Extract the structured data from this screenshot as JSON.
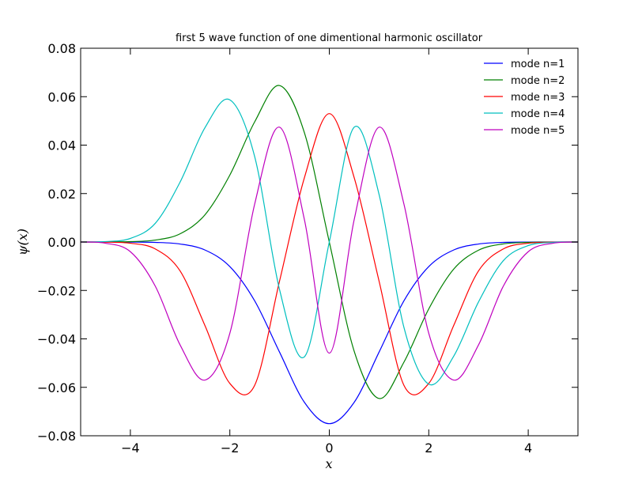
{
  "chart_data": {
    "type": "line",
    "title": "first 5 wave function of one dimentional harmonic oscillator",
    "xlabel": "x",
    "ylabel": "ψ(x)",
    "xlim": [
      -5,
      5
    ],
    "ylim": [
      -0.08,
      0.08
    ],
    "xticks": [
      -4,
      -2,
      0,
      2,
      4
    ],
    "xtick_labels": [
      "−4",
      "−2",
      "0",
      "2",
      "4"
    ],
    "yticks": [
      -0.08,
      -0.06,
      -0.04,
      -0.02,
      0.0,
      0.02,
      0.04,
      0.06,
      0.08
    ],
    "ytick_labels": [
      "−0.08",
      "−0.06",
      "−0.04",
      "−0.02",
      "0.00",
      "0.02",
      "0.04",
      "0.06",
      "0.08"
    ],
    "grid": false,
    "legend_position": "top-right",
    "series": [
      {
        "name": "mode n=1",
        "color": "#0000ff",
        "x": [
          -5,
          -4.5,
          -4,
          -3.5,
          -3,
          -2.5,
          -2,
          -1.5,
          -1,
          -0.5,
          0,
          0.5,
          1,
          1.5,
          2,
          2.5,
          3,
          3.5,
          4,
          4.5,
          5
        ],
        "y": [
          0,
          -0.0,
          -3e-05,
          -0.00016,
          -0.00083,
          -0.0033,
          -0.01015,
          -0.02431,
          -0.04549,
          -0.06621,
          -0.075,
          -0.06621,
          -0.04549,
          -0.02431,
          -0.01015,
          -0.0033,
          -0.00083,
          -0.00016,
          -3e-05,
          -0.0,
          0
        ]
      },
      {
        "name": "mode n=2",
        "color": "#008000",
        "x": [
          -5,
          -4.5,
          -4,
          -3.5,
          -3,
          -2.5,
          -2,
          -1.5,
          -1,
          -0.5,
          0,
          0.5,
          1,
          1.5,
          2,
          2.5,
          3,
          3.5,
          4,
          4.5,
          5
        ],
        "y": [
          0,
          2e-05,
          0.00016,
          0.00079,
          0.00339,
          0.01124,
          0.02763,
          0.04963,
          0.0646,
          0.04507,
          0.0,
          -0.04507,
          -0.0646,
          -0.04963,
          -0.02763,
          -0.01124,
          -0.00339,
          -0.00079,
          -0.00016,
          -2e-05,
          0
        ]
      },
      {
        "name": "mode n=3",
        "color": "#ff0000",
        "x": [
          -5,
          -4.5,
          -4,
          -3.5,
          -3,
          -2.5,
          -2,
          -1.5,
          -1,
          -0.5,
          0,
          0.5,
          1,
          1.5,
          2,
          2.5,
          3,
          3.5,
          4,
          4.5,
          5
        ],
        "y": [
          0,
          -6e-05,
          -0.00052,
          -0.00286,
          -0.01195,
          -0.03453,
          -0.05839,
          -0.05914,
          -0.01608,
          0.02659,
          0.053,
          0.02659,
          -0.01608,
          -0.05914,
          -0.05839,
          -0.03453,
          -0.01195,
          -0.00286,
          -0.00052,
          -6e-05,
          0
        ]
      },
      {
        "name": "mode n=4",
        "color": "#00bfbf",
        "x": [
          -5,
          -4.5,
          -4,
          -3.5,
          -3,
          -2.5,
          -2,
          -1.5,
          -1,
          -0.5,
          0,
          0.5,
          1,
          1.5,
          2,
          2.5,
          3,
          3.5,
          4,
          4.5,
          5
        ],
        "y": [
          0,
          0.00018,
          0.00147,
          0.00769,
          0.02475,
          0.0472,
          0.0587,
          0.0352,
          -0.0197,
          -0.0474,
          0.0,
          0.0474,
          0.0197,
          -0.0352,
          -0.0587,
          -0.0472,
          -0.02475,
          -0.00769,
          -0.00147,
          -0.00018,
          0
        ]
      },
      {
        "name": "mode n=5",
        "color": "#bf00bf",
        "x": [
          -5,
          -4.5,
          -4,
          -3.5,
          -3,
          -2.5,
          -2,
          -1.5,
          -1,
          -0.5,
          0,
          0.5,
          1,
          1.5,
          2,
          2.5,
          3,
          3.5,
          4,
          4.5,
          5
        ],
        "y": [
          0,
          -0.0005,
          -0.004,
          -0.0182,
          -0.0425,
          -0.057,
          -0.0377,
          0.0157,
          0.0474,
          0.0092,
          -0.0459,
          0.0092,
          0.0474,
          0.0157,
          -0.0377,
          -0.057,
          -0.0425,
          -0.0182,
          -0.004,
          -0.0005,
          0
        ]
      }
    ]
  }
}
